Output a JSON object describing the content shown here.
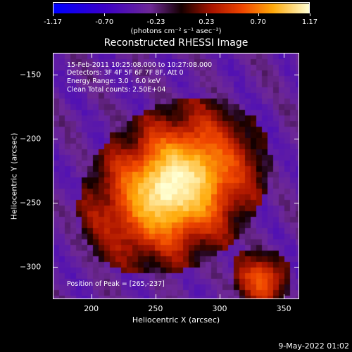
{
  "colorbar": {
    "tick_labels": [
      "-1.17",
      "-0.70",
      "-0.23",
      "0.23",
      "0.70",
      "1.17"
    ],
    "tick_values": [
      -1.17,
      -0.7,
      -0.23,
      0.23,
      0.7,
      1.17
    ],
    "range": [
      -1.17,
      1.17
    ],
    "units_label": "(photons cm⁻² s⁻¹ asec⁻²)"
  },
  "title": "Reconstructed RHESSI Image",
  "annotations": {
    "time_range": "15-Feb-2011 10:25:08.000 to 10:27:08.000",
    "detectors": "Detectors: 3F 4F 5F 6F 7F 8F, Att 0",
    "energy_range": "Energy Range: 3.0 - 6.0 keV",
    "method_counts": "Clean     Total counts: 2.50E+04",
    "peak_position": "Position of Peak = [265,-237]"
  },
  "axes": {
    "xlabel": "Heliocentric X (arcsec)",
    "ylabel": "Heliocentric Y (arcsec)",
    "xlim": [
      170,
      362
    ],
    "ylim": [
      -325,
      -133
    ],
    "xticks": [
      200,
      250,
      300,
      350
    ],
    "xtick_labels": [
      "200",
      "250",
      "300",
      "350"
    ],
    "yticks": [
      -150,
      -200,
      -250,
      -300
    ],
    "ytick_labels": [
      "-150",
      "-200",
      "-250",
      "-300"
    ]
  },
  "image": {
    "peak": [
      265,
      -237
    ]
  },
  "datestamp": "9-May-2022 01:02",
  "colors": {
    "background": "#000000",
    "foreground": "#ffffff"
  }
}
